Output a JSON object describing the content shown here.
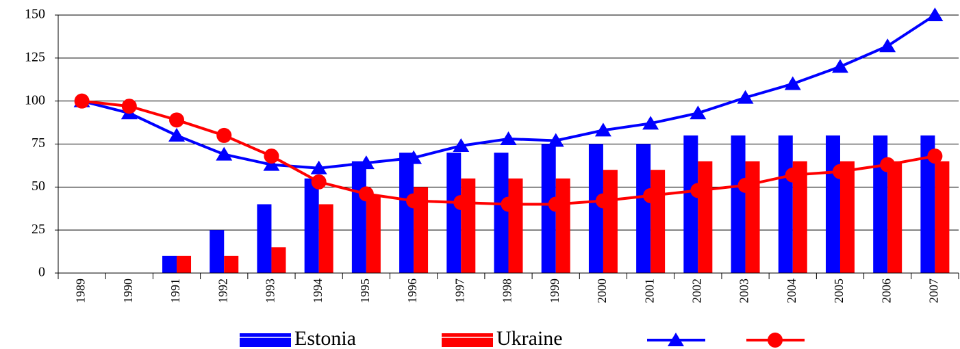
{
  "chart_data": {
    "type": "bar",
    "categories": [
      "1989",
      "1990",
      "1991",
      "1992",
      "1993",
      "1994",
      "1995",
      "1996",
      "1997",
      "1998",
      "1999",
      "2000",
      "2001",
      "2002",
      "2003",
      "2004",
      "2005",
      "2006",
      "2007"
    ],
    "series": [
      {
        "name": "Estonia",
        "type": "bar",
        "color": "#0000ff",
        "values": [
          null,
          null,
          10,
          25,
          40,
          55,
          65,
          70,
          70,
          70,
          75,
          75,
          75,
          80,
          80,
          80,
          80,
          80,
          80
        ]
      },
      {
        "name": "Ukraine",
        "type": "bar",
        "color": "#ff0000",
        "values": [
          null,
          null,
          10,
          10,
          15,
          40,
          45,
          50,
          55,
          55,
          55,
          60,
          60,
          65,
          65,
          65,
          65,
          65,
          65
        ]
      },
      {
        "type": "line",
        "marker": "triangle",
        "color": "#0000ff",
        "values": [
          100,
          93,
          80,
          69,
          63,
          61,
          64,
          67,
          74,
          78,
          77,
          83,
          87,
          93,
          102,
          110,
          120,
          132,
          150
        ]
      },
      {
        "type": "line",
        "marker": "circle",
        "color": "#ff0000",
        "values": [
          100,
          97,
          89,
          80,
          68,
          53,
          46,
          42,
          41,
          40,
          40,
          42,
          45,
          48,
          51,
          57,
          59,
          63,
          68
        ]
      }
    ],
    "ylim": [
      0,
      150
    ],
    "yticks": [
      0,
      25,
      50,
      75,
      100,
      125,
      150
    ],
    "grid": true,
    "legend": "bottom"
  }
}
